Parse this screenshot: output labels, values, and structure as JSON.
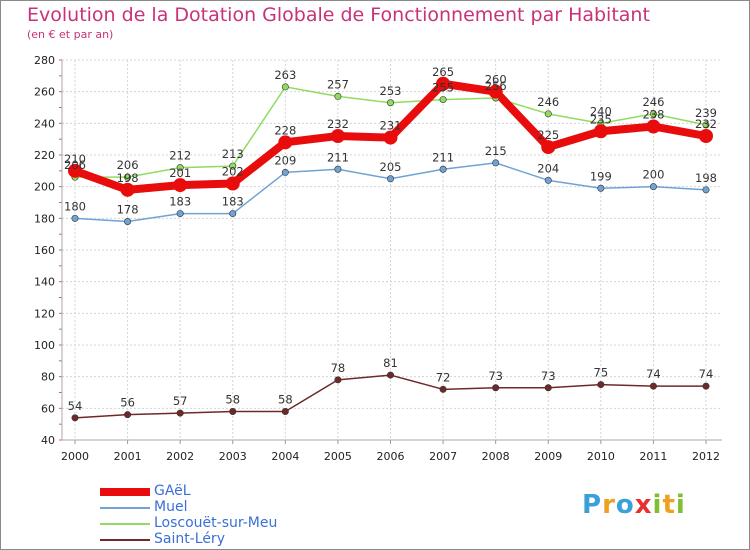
{
  "header": {
    "title": "Evolution de la Dotation Globale de Fonctionnement par Habitant",
    "subtitle": "(en € et par an)"
  },
  "logo": {
    "text": "Proxiti",
    "letters": [
      {
        "ch": "P",
        "color": "#3aa0d8"
      },
      {
        "ch": "r",
        "color": "#f0a020"
      },
      {
        "ch": "o",
        "color": "#3aa0d8"
      },
      {
        "ch": "x",
        "color": "#e83030"
      },
      {
        "ch": "i",
        "color": "#80c030"
      },
      {
        "ch": "t",
        "color": "#f0a020"
      },
      {
        "ch": "i",
        "color": "#80c030"
      }
    ]
  },
  "chart_data": {
    "type": "line",
    "title": "Evolution de la Dotation Globale de Fonctionnement par Habitant",
    "subtitle": "(en € et par an)",
    "xlabel": "",
    "ylabel": "",
    "x": [
      "2000",
      "2001",
      "2002",
      "2003",
      "2004",
      "2005",
      "2006",
      "2007",
      "2008",
      "2009",
      "2010",
      "2011",
      "2012"
    ],
    "ylim": [
      40,
      280
    ],
    "yticks": [
      "40",
      "60",
      "80",
      "100",
      "120",
      "140",
      "160",
      "180",
      "200",
      "220",
      "240",
      "260",
      "280"
    ],
    "grid": true,
    "legend_position": "bottom-left",
    "series": [
      {
        "name": "GAëL",
        "color": "#e80c0c",
        "width": 8,
        "label_offset": "above",
        "values": [
          210,
          198,
          201,
          202,
          228,
          232,
          231,
          265,
          260,
          225,
          235,
          238,
          232
        ],
        "labels": [
          "210",
          "198",
          "201",
          "202",
          "228",
          "232",
          "231",
          "265",
          "260",
          "225",
          "235",
          "238",
          "232"
        ]
      },
      {
        "name": "Muel",
        "color": "#6fa3d4",
        "width": 1.5,
        "label_offset": "above",
        "values": [
          180,
          178,
          183,
          183,
          209,
          211,
          205,
          211,
          215,
          204,
          199,
          200,
          198
        ],
        "labels": [
          "180",
          "178",
          "183",
          "183",
          "209",
          "211",
          "205",
          "211",
          "215",
          "204",
          "199",
          "200",
          "198"
        ]
      },
      {
        "name": "Loscouët-sur-Meu",
        "color": "#90dc60",
        "width": 1.5,
        "label_offset": "above",
        "values": [
          206,
          206,
          212,
          213,
          263,
          257,
          253,
          255,
          256,
          246,
          240,
          246,
          239
        ],
        "labels": [
          "206",
          "206",
          "212",
          "213",
          "263",
          "257",
          "253",
          "255",
          "256",
          "246",
          "240",
          "246",
          "239"
        ]
      },
      {
        "name": "Saint-Léry",
        "color": "#6e2a2a",
        "width": 1.5,
        "label_offset": "above",
        "values": [
          54,
          56,
          57,
          58,
          58,
          78,
          81,
          72,
          73,
          73,
          75,
          74,
          74
        ],
        "labels": [
          "54",
          "56",
          "57",
          "58",
          "58",
          "78",
          "81",
          "72",
          "73",
          "73",
          "75",
          "74",
          "74"
        ]
      }
    ]
  }
}
